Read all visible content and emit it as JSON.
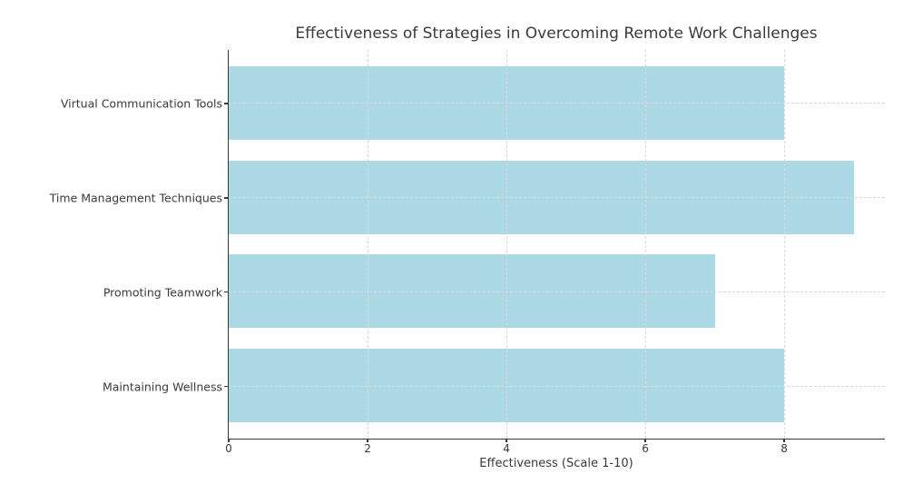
{
  "chart_data": {
    "type": "bar",
    "orientation": "horizontal",
    "title": "Effectiveness of Strategies in Overcoming Remote Work Challenges",
    "categories": [
      "Virtual Communication Tools",
      "Time Management Techniques",
      "Promoting Teamwork",
      "Maintaining Wellness"
    ],
    "values": [
      8,
      9,
      7,
      8
    ],
    "xlabel": "Effectiveness (Scale 1-10)",
    "ylabel": "",
    "xlim": [
      0,
      9.45
    ],
    "xticks": [
      0,
      2,
      4,
      6,
      8
    ],
    "grid": true,
    "grid_style": "dashed",
    "legend": false,
    "bar_color": "#ADD8E6",
    "grid_color": "#d8d8d8",
    "axis_color": "#3a3a3a",
    "text_color": "#3a3a3a",
    "background_color": "#ffffff"
  }
}
